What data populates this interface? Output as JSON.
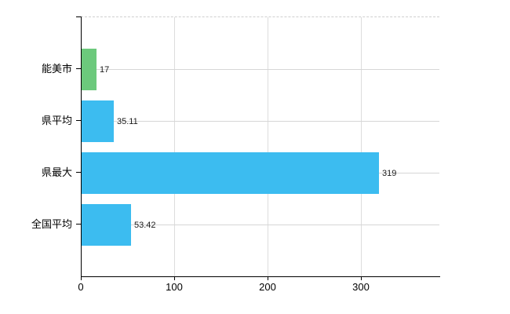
{
  "chart_data": {
    "type": "bar",
    "orientation": "horizontal",
    "categories": [
      "能美市",
      "県平均",
      "県最大",
      "全国平均"
    ],
    "values": [
      17,
      35.11,
      319,
      53.42
    ],
    "value_labels": [
      "17",
      "35.11",
      "319",
      "53.42"
    ],
    "bar_colors": [
      "#6cc97c",
      "#3cbcf0",
      "#3cbcf0",
      "#3cbcf0"
    ],
    "x_ticks": [
      0,
      100,
      200,
      300
    ],
    "x_tick_labels": [
      "0",
      "100",
      "200",
      "300"
    ],
    "xlim": [
      0,
      384
    ],
    "grid": true,
    "legend": "none",
    "title": ""
  },
  "colors": {
    "highlight_bar": "#6cc97c",
    "default_bar": "#3cbcf0",
    "gridline": "#d9d9d9",
    "axis": "#000000"
  }
}
